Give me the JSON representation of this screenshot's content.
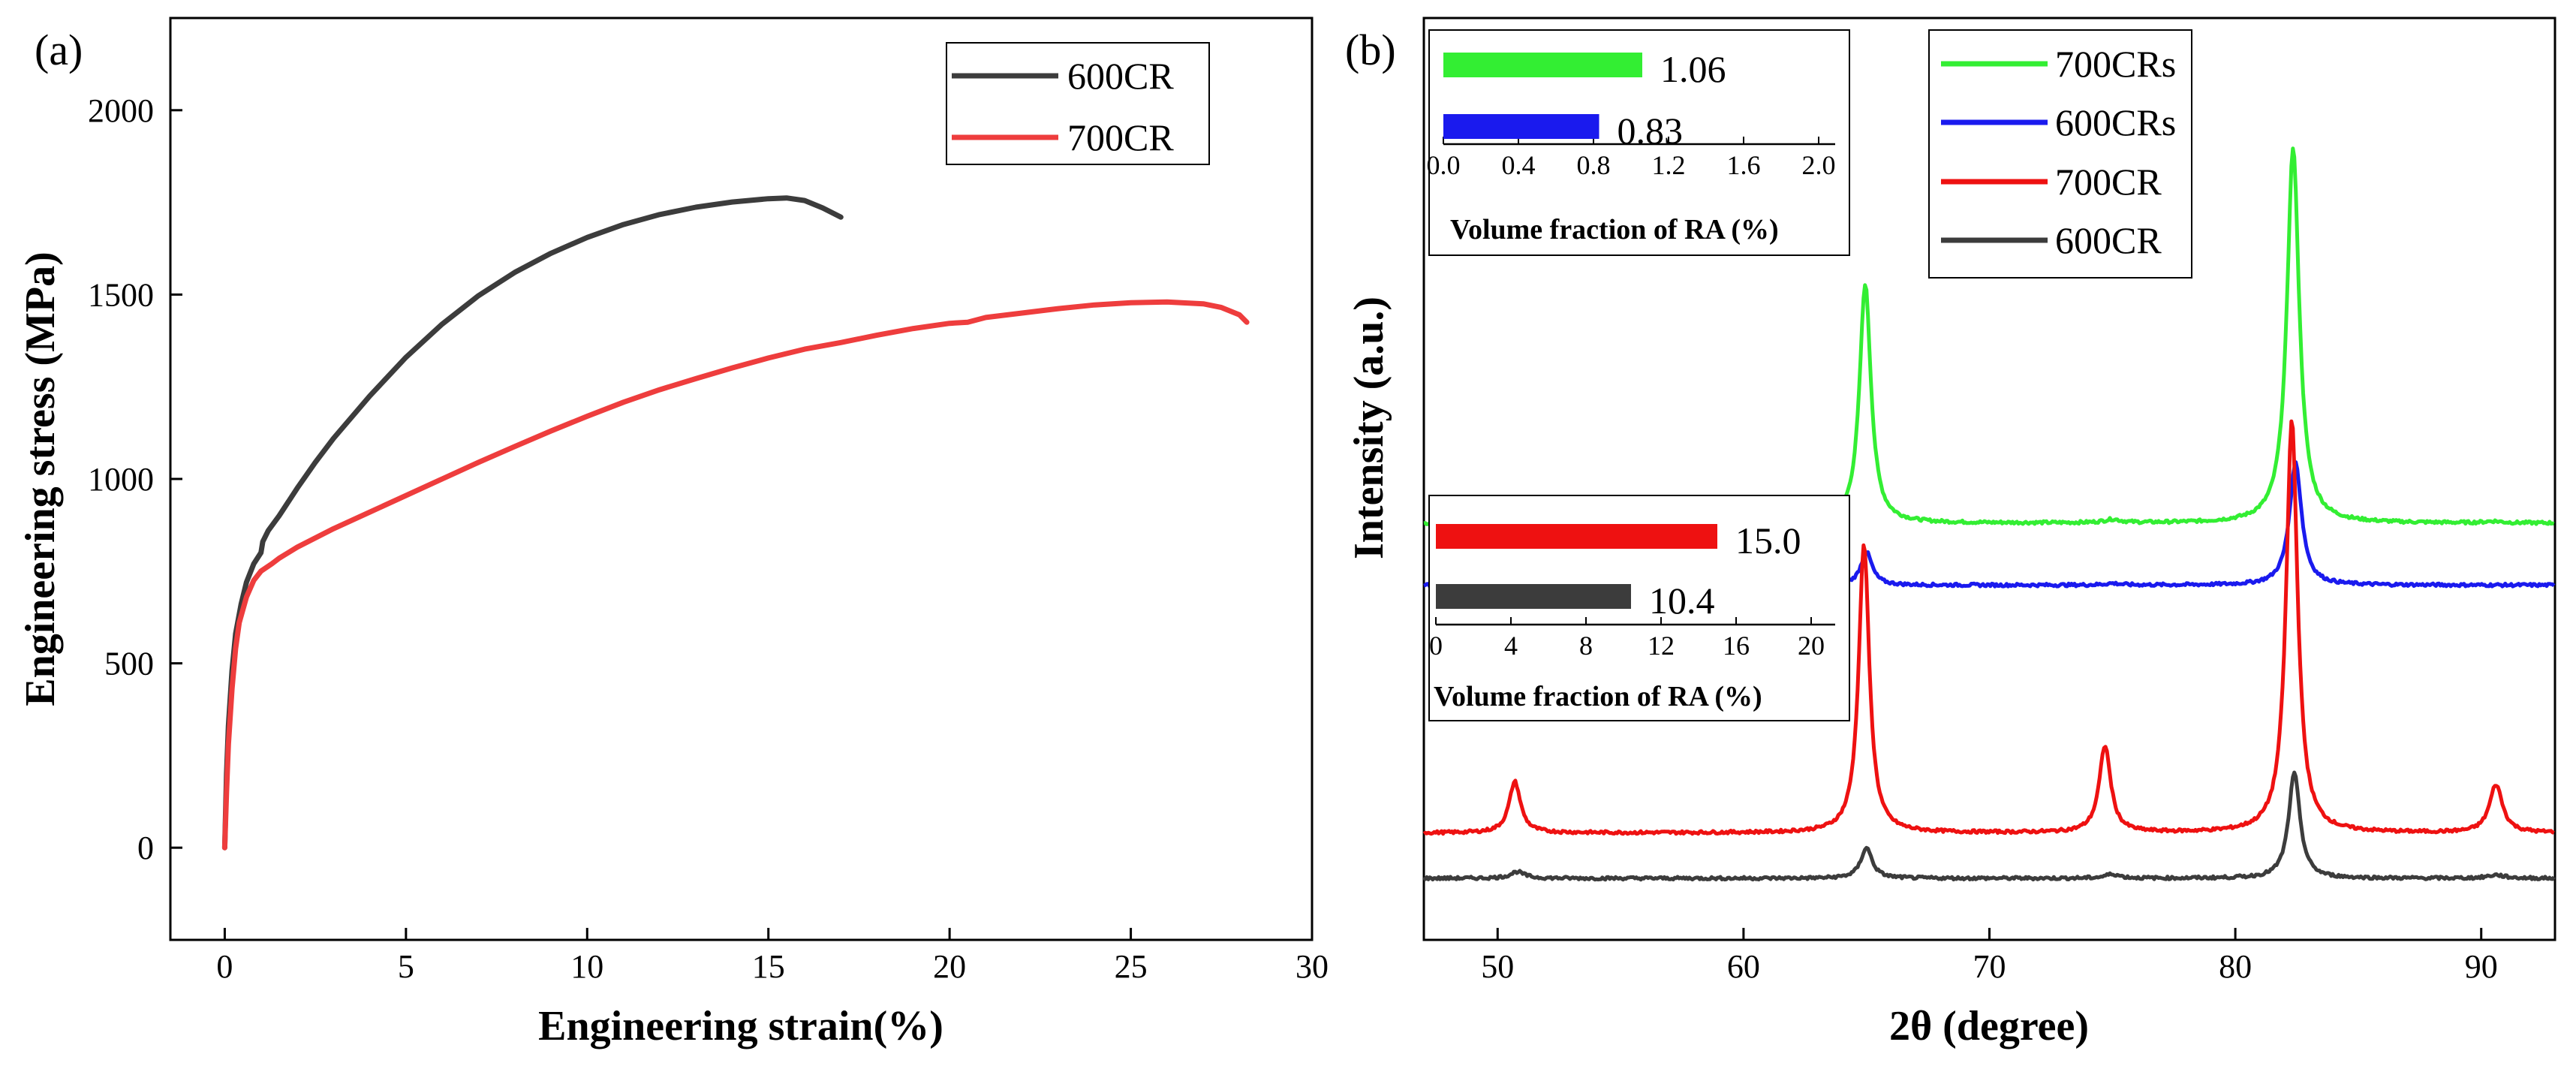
{
  "chart_data": [
    {
      "panel_label": "(a)",
      "type": "line",
      "xlabel": "Engineering strain(%)",
      "ylabel": "Engineering stress (MPa)",
      "xlim": [
        -1.5,
        30
      ],
      "ylim": [
        -250,
        2250
      ],
      "xticks": [
        0,
        5,
        10,
        15,
        20,
        25,
        30
      ],
      "yticks": [
        0,
        500,
        1000,
        1500,
        2000
      ],
      "legend": "top-right",
      "series": [
        {
          "name": "600CR",
          "color": "#3c3c3c",
          "x": [
            0,
            0.05,
            0.1,
            0.2,
            0.3,
            0.45,
            0.6,
            0.8,
            1.0,
            1.05,
            1.2,
            1.5,
            2,
            2.5,
            3,
            4,
            5,
            6,
            7,
            8,
            9,
            10,
            11,
            12,
            13,
            14,
            15,
            15.5,
            16,
            16.5,
            17
          ],
          "y": [
            0,
            200,
            330,
            480,
            580,
            660,
            720,
            770,
            800,
            830,
            860,
            900,
            975,
            1045,
            1110,
            1225,
            1330,
            1420,
            1497,
            1560,
            1612,
            1655,
            1690,
            1717,
            1737,
            1751,
            1760,
            1762,
            1755,
            1735,
            1710
          ]
        },
        {
          "name": "700CR",
          "color": "#ee3d3d",
          "x": [
            0,
            0.05,
            0.1,
            0.2,
            0.3,
            0.4,
            0.6,
            0.8,
            1.0,
            1.3,
            1.5,
            2,
            3,
            4,
            5,
            6,
            7,
            8,
            9,
            10,
            11,
            12,
            13,
            14,
            15,
            16,
            17,
            18,
            19,
            20,
            20.5,
            21,
            22,
            23,
            24,
            25,
            26,
            27,
            27.5,
            28,
            28.2
          ],
          "y": [
            0,
            150,
            280,
            430,
            540,
            610,
            680,
            725,
            750,
            770,
            785,
            815,
            865,
            910,
            955,
            1000,
            1045,
            1088,
            1130,
            1170,
            1208,
            1242,
            1272,
            1301,
            1328,
            1352,
            1370,
            1390,
            1408,
            1422,
            1425,
            1438,
            1450,
            1462,
            1472,
            1478,
            1480,
            1475,
            1465,
            1445,
            1425
          ]
        }
      ]
    },
    {
      "panel_label": "(b)",
      "type": "line",
      "xlabel": "2θ (degree)",
      "ylabel": "Intensity (a.u.)",
      "xlim": [
        47,
        93
      ],
      "xticks": [
        50,
        60,
        70,
        80,
        90
      ],
      "legend": "top-right",
      "series": [
        {
          "name": "700CRs",
          "color": "#33ee33",
          "baseline": 4.3,
          "peaks": [
            [
              64.95,
              2.9,
              0.28
            ],
            [
              82.35,
              4.55,
              0.3
            ],
            [
              75.0,
              0.04,
              0.4
            ],
            [
              90.5,
              0.02,
              0.4
            ]
          ]
        },
        {
          "name": "600CRs",
          "color": "#1a1aee",
          "baseline": 3.55,
          "peaks": [
            [
              65.0,
              0.4,
              0.28
            ],
            [
              82.45,
              1.48,
              0.3
            ],
            [
              75.0,
              0.02,
              0.4
            ]
          ]
        },
        {
          "name": "700CR",
          "color": "#ee1111",
          "baseline": 0.55,
          "peaks": [
            [
              50.7,
              0.62,
              0.28
            ],
            [
              64.9,
              3.5,
              0.26
            ],
            [
              74.7,
              1.05,
              0.28
            ],
            [
              82.3,
              5.0,
              0.28
            ],
            [
              90.6,
              0.58,
              0.32
            ]
          ]
        },
        {
          "name": "600CR",
          "color": "#3c3c3c",
          "baseline": 0.0,
          "peaks": [
            [
              50.8,
              0.08,
              0.35
            ],
            [
              65.0,
              0.37,
              0.28
            ],
            [
              75.0,
              0.05,
              0.35
            ],
            [
              82.4,
              1.27,
              0.28
            ],
            [
              90.6,
              0.04,
              0.4
            ]
          ]
        }
      ],
      "insets": [
        {
          "title": "Volume fraction of RA (%)",
          "xlim": [
            0,
            2.0
          ],
          "xticks": [
            "0.0",
            "0.4",
            "0.8",
            "1.2",
            "1.6",
            "2.0"
          ],
          "bars": [
            {
              "series": "700CRs",
              "value": 1.06,
              "label": "1.06",
              "color": "#33ee33"
            },
            {
              "series": "600CRs",
              "value": 0.83,
              "label": "0.83",
              "color": "#1a1aee"
            }
          ]
        },
        {
          "title": "Volume fraction of RA (%)",
          "xlim": [
            0,
            20
          ],
          "xticks": [
            "0",
            "4",
            "8",
            "12",
            "16",
            "20"
          ],
          "bars": [
            {
              "series": "700CR",
              "value": 15.0,
              "label": "15.0",
              "color": "#ee1111"
            },
            {
              "series": "600CR",
              "value": 10.4,
              "label": "10.4",
              "color": "#3c3c3c"
            }
          ]
        }
      ]
    }
  ]
}
